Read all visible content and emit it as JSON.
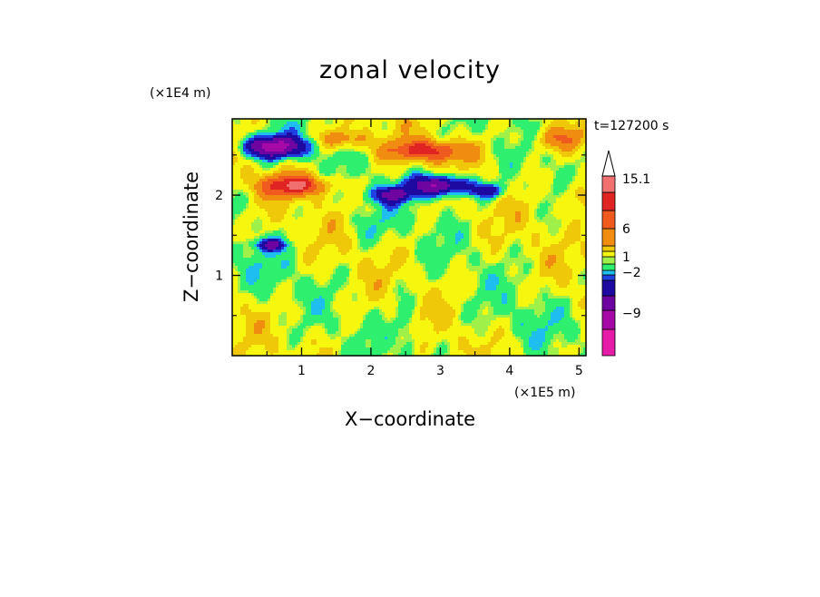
{
  "chart_data": {
    "type": "heatmap",
    "title": "zonal velocity",
    "xlabel": "X−coordinate",
    "ylabel": "Z−coordinate",
    "x_unit": "(×1E5 m)",
    "y_unit": "(×1E4 m)",
    "time_label": "t=127200 s",
    "xlim": [
      0,
      5.1
    ],
    "ylim": [
      0,
      2.95
    ],
    "x_ticks": [
      "1",
      "2",
      "3",
      "4",
      "5"
    ],
    "x_tick_values": [
      1,
      2,
      3,
      4,
      5
    ],
    "y_ticks": [
      "1",
      "2"
    ],
    "y_tick_values": [
      1,
      2
    ],
    "colorbar": {
      "colors": [
        "#e61ca8",
        "#a60aa6",
        "#6f05a0",
        "#1e0aa0",
        "#1f3fe0",
        "#1ebff0",
        "#2ef06e",
        "#9ff048",
        "#f6f60e",
        "#f0c80a",
        "#f08c10",
        "#f05a1e",
        "#e02424",
        "#f07070",
        "#f8b4b4",
        "#ffffff"
      ],
      "tick_labels": [
        "15.1",
        "6",
        "1",
        "−2",
        "−9"
      ],
      "tick_values": [
        15.1,
        6,
        1,
        -2,
        -9
      ],
      "extend": "max"
    },
    "field_features": [
      {
        "value": -12,
        "x": 0.6,
        "z": 2.6,
        "sx": 0.45,
        "sz": 0.14
      },
      {
        "value": -11,
        "x": 3.0,
        "z": 2.12,
        "sx": 0.45,
        "sz": 0.13
      },
      {
        "value": -7,
        "x": 2.3,
        "z": 2.0,
        "sx": 0.3,
        "sz": 0.1
      },
      {
        "value": -6,
        "x": 3.7,
        "z": 2.05,
        "sx": 0.25,
        "sz": 0.09
      },
      {
        "value": -7,
        "x": 0.55,
        "z": 1.38,
        "sx": 0.22,
        "sz": 0.07
      },
      {
        "value": 8,
        "x": 0.9,
        "z": 2.12,
        "sx": 0.5,
        "sz": 0.13
      },
      {
        "value": 7,
        "x": 2.8,
        "z": 2.55,
        "sx": 0.6,
        "sz": 0.13
      },
      {
        "value": 5,
        "x": 1.6,
        "z": 2.7,
        "sx": 0.35,
        "sz": 0.12
      },
      {
        "value": 4,
        "x": 4.7,
        "z": 2.7,
        "sx": 0.4,
        "sz": 0.15
      },
      {
        "value": 4,
        "x": 5.0,
        "z": 2.0,
        "sx": 0.2,
        "sz": 0.2
      },
      {
        "value": -1.5,
        "x": 2.0,
        "z": 1.6,
        "sx": 0.35,
        "sz": 0.25
      },
      {
        "value": -1.5,
        "x": 2.45,
        "z": 0.6,
        "sx": 0.15,
        "sz": 0.3
      },
      {
        "value": -2.2,
        "x": 2.55,
        "z": 0.25,
        "sx": 0.12,
        "sz": 0.25
      },
      {
        "value": -0.8,
        "x": 4.2,
        "z": 0.4,
        "sx": 0.7,
        "sz": 0.3
      },
      {
        "value": -0.8,
        "x": 0.4,
        "z": 1.05,
        "sx": 0.6,
        "sz": 0.3
      }
    ]
  }
}
